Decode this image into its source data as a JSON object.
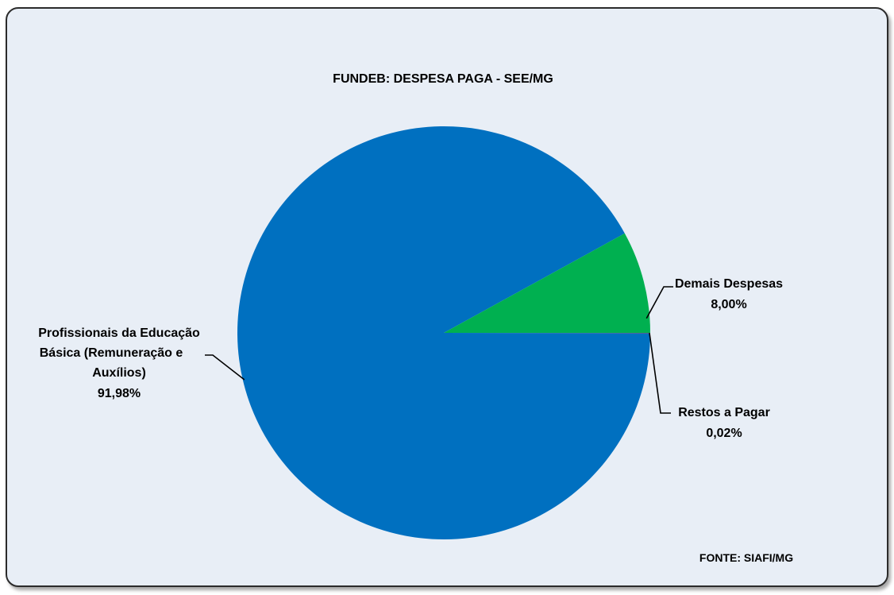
{
  "chart_data": {
    "type": "pie",
    "title": "FUNDEB: DESPESA PAGA - SEE/MG",
    "source_note": "FONTE: SIAFI/MG",
    "slices": [
      {
        "label_lines": [
          "Profissionais da Educação",
          "Básica (Remuneração e",
          "Auxílios)"
        ],
        "value": 91.98,
        "value_label": "91,98%",
        "color": "#0070c0"
      },
      {
        "label_lines": [
          "Demais Despesas"
        ],
        "value": 8.0,
        "value_label": "8,00%",
        "color": "#00b050"
      },
      {
        "label_lines": [
          "Restos a Pagar"
        ],
        "value": 0.02,
        "value_label": "0,02%",
        "color": "#ff0000"
      }
    ],
    "legend": "none"
  },
  "colors": {
    "background": "#e8eef6",
    "border": "#2b2b2b"
  }
}
